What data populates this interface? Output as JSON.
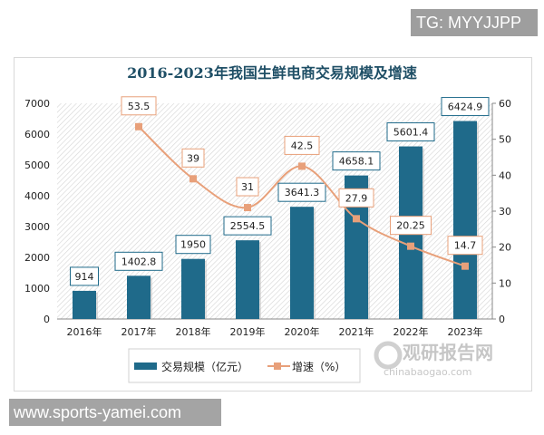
{
  "watermark_top": "TG: MYYJJPP",
  "watermark_bottom": "www.sports-yamei.com",
  "logo": {
    "name": "观研报告网",
    "url_text": "chinabaogao.com"
  },
  "chart_data": {
    "type": "bar+line",
    "title": "2016-2023年我国生鲜电商交易规模及增速",
    "categories": [
      "2016年",
      "2017年",
      "2018年",
      "2019年",
      "2020年",
      "2021年",
      "2022年",
      "2023年"
    ],
    "series": [
      {
        "name": "交易规模（亿元）",
        "type": "bar",
        "axis": "left",
        "color": "#1f6a8a",
        "values": [
          914,
          1402.8,
          1950,
          2554.5,
          3641.3,
          4658.1,
          5601.4,
          6424.9
        ],
        "labels": [
          "914",
          "1402.8",
          "1950",
          "2554.5",
          "3641.3",
          "4658.1",
          "5601.4",
          "6424.9"
        ]
      },
      {
        "name": "增速（%）",
        "type": "line",
        "axis": "right",
        "color": "#e8a07a",
        "values": [
          null,
          53.5,
          39,
          31,
          42.5,
          27.9,
          20.25,
          14.7
        ],
        "labels": [
          "",
          "53.5",
          "39",
          "31",
          "42.5",
          "27.9",
          "20.25",
          "14.7"
        ]
      }
    ],
    "y_left": {
      "range": [
        0,
        7000
      ],
      "ticks": [
        "0",
        "1000",
        "2000",
        "3000",
        "4000",
        "5000",
        "6000",
        "7000"
      ]
    },
    "y_right": {
      "range": [
        0,
        60
      ],
      "ticks": [
        "0",
        "10",
        "20",
        "30",
        "40",
        "50",
        "60"
      ]
    },
    "legend": "bottom"
  }
}
